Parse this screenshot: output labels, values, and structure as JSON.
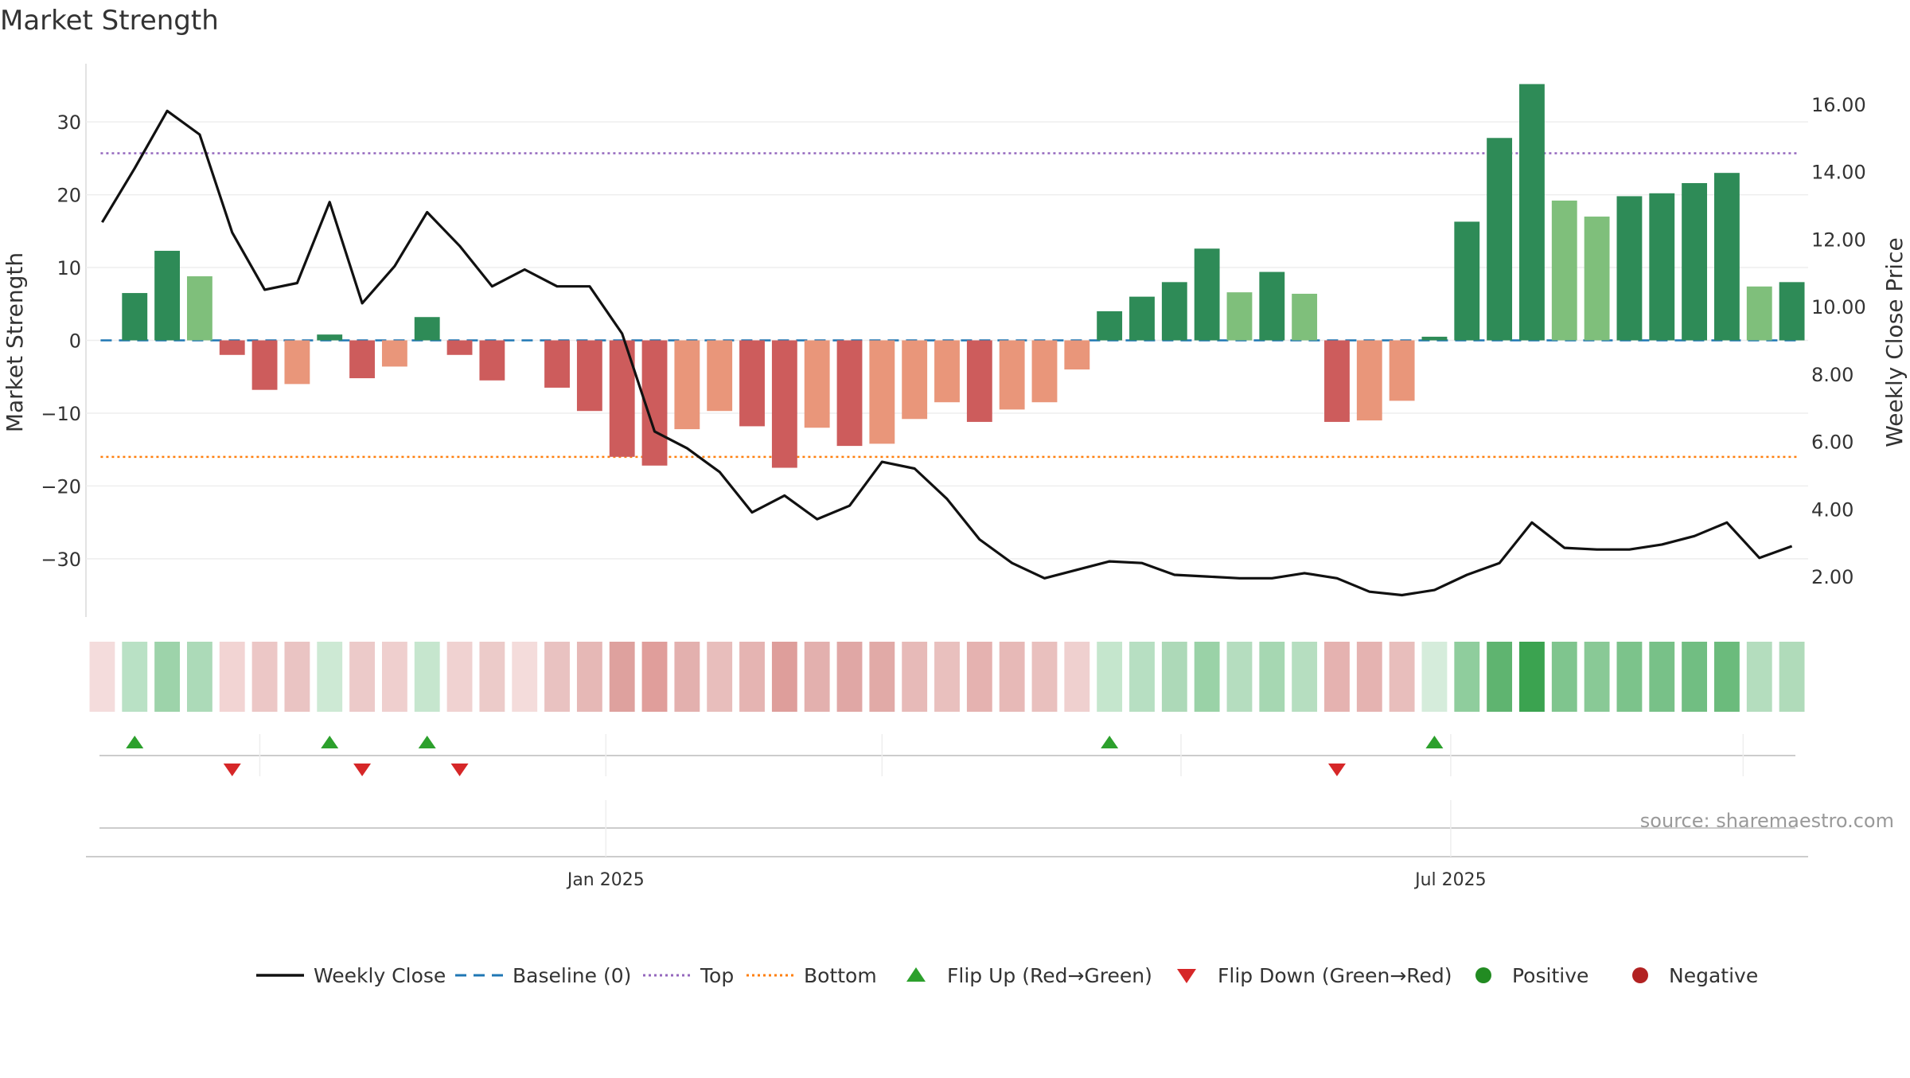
{
  "chart_data": {
    "type": "bar",
    "title": "Market Strength",
    "ylabel_left": "Market Strength",
    "ylabel_right": "Weekly Close Price",
    "source": "source: sharemaestro.com",
    "ylim_left": [
      -38,
      38
    ],
    "ylim_right": [
      0.8,
      17.2
    ],
    "yticks_left": [
      30,
      20,
      10,
      0,
      -10,
      -20,
      -30
    ],
    "yticks_left_labels": [
      "30",
      "20",
      "10",
      "0",
      "−10",
      "−20",
      "−30"
    ],
    "yticks_right": [
      16,
      14,
      12,
      10,
      8,
      6,
      4,
      2
    ],
    "yticks_right_labels": [
      "16.00",
      "14.00",
      "12.00",
      "10.00",
      "8.00",
      "6.00",
      "4.00",
      "2.00"
    ],
    "x_tick_labels": [
      {
        "label": "Jan 2025",
        "index": 15.5
      },
      {
        "label": "Jul 2025",
        "index": 41.5
      }
    ],
    "thresholds": {
      "top": 25.7,
      "bottom": -16,
      "baseline": 0
    },
    "weeks": 53,
    "strength": [
      0,
      6.5,
      12.3,
      8.8,
      -2,
      -6.8,
      -6,
      0.8,
      -5.2,
      -3.6,
      3.2,
      -2,
      -5.5,
      0,
      -6.5,
      -9.7,
      -16,
      -17.2,
      -12.2,
      -9.7,
      -11.8,
      -17.5,
      -12,
      -14.5,
      -14.2,
      -10.8,
      -8.5,
      -11.2,
      -9.5,
      -8.5,
      -4,
      4,
      6,
      8,
      12.6,
      6.6,
      9.4,
      6.4,
      -11.2,
      -11,
      -8.3,
      0.5,
      16.3,
      27.8,
      35.2,
      19.2,
      17,
      19.8,
      20.2,
      21.6,
      23,
      7.4,
      8
    ],
    "close": [
      12.5,
      14.1,
      15.8,
      15.1,
      12.2,
      10.5,
      10.7,
      13.1,
      10.1,
      11.2,
      12.8,
      11.8,
      10.6,
      11.1,
      10.6,
      10.6,
      9.2,
      6.3,
      5.8,
      5.1,
      3.9,
      4.4,
      3.7,
      4.1,
      5.4,
      5.2,
      4.3,
      3.1,
      2.4,
      1.95,
      2.2,
      2.45,
      2.4,
      2.05,
      2.0,
      1.95,
      1.95,
      2.1,
      1.95,
      1.55,
      1.45,
      1.6,
      2.05,
      2.4,
      3.6,
      2.85,
      2.8,
      2.8,
      2.95,
      3.2,
      3.6,
      2.55,
      2.9
    ],
    "heatmap_colors": [
      "#f4dcdc",
      "#b9e1c5",
      "#9dd3aa",
      "#acdab8",
      "#f2d4d3",
      "#ecc7c6",
      "#eac4c3",
      "#cde9d4",
      "#eccac9",
      "#efcfce",
      "#c6e6ce",
      "#f0d2d1",
      "#eccbc9",
      "#f4dcdb",
      "#e9c2c1",
      "#e6b8b6",
      "#dea19e",
      "#e09e9b",
      "#e3b0ae",
      "#e8bebc",
      "#e5b4b2",
      "#de9e9b",
      "#e3b0ae",
      "#e0a7a5",
      "#e1aaa7",
      "#e7bab8",
      "#e9c0be",
      "#e5b2b0",
      "#e7b9b7",
      "#e9c0be",
      "#efd0cf",
      "#c5e6cd",
      "#b7dfc2",
      "#add9b8",
      "#9ad2a7",
      "#b5ddbf",
      "#a6d7b2",
      "#b6dec0",
      "#e5b2b0",
      "#e5b3b1",
      "#e8bebc",
      "#d5ecdb",
      "#8fcd9d",
      "#5fb470",
      "#3ba350",
      "#7fc58e",
      "#89c996",
      "#7cc38b",
      "#78c188",
      "#71be82",
      "#6bbb7c",
      "#b4ddbe",
      "#b0dbba"
    ],
    "flip_up_indices": [
      1,
      7,
      10,
      31,
      41
    ],
    "flip_down_indices": [
      4,
      8,
      11,
      38
    ],
    "bar_colors": {
      "strong_positive": "#2e8b57",
      "weak_positive": "#7fbf7b",
      "strong_negative": "#cd5c5c",
      "weak_negative": "#e9967a"
    },
    "line_colors": {
      "close": "#111111",
      "baseline": "#1f77b4",
      "top": "#9467bd",
      "bottom": "#ff7f0e",
      "flip_up": "#2ca02c",
      "flip_down": "#d62728",
      "positive": "#228b22",
      "negative": "#b22222"
    },
    "legend": [
      {
        "key": "close",
        "label": "Weekly Close",
        "kind": "line"
      },
      {
        "key": "baseline",
        "label": "Baseline (0)",
        "kind": "dash"
      },
      {
        "key": "top",
        "label": "Top",
        "kind": "dot"
      },
      {
        "key": "bottom",
        "label": "Bottom",
        "kind": "dot"
      },
      {
        "key": "flip_up",
        "label": "Flip Up (Red→Green)",
        "kind": "tri-up"
      },
      {
        "key": "flip_down",
        "label": "Flip Down (Green→Red)",
        "kind": "tri-down"
      },
      {
        "key": "positive",
        "label": "Positive",
        "kind": "circle"
      },
      {
        "key": "negative",
        "label": "Negative",
        "kind": "circle"
      }
    ]
  }
}
